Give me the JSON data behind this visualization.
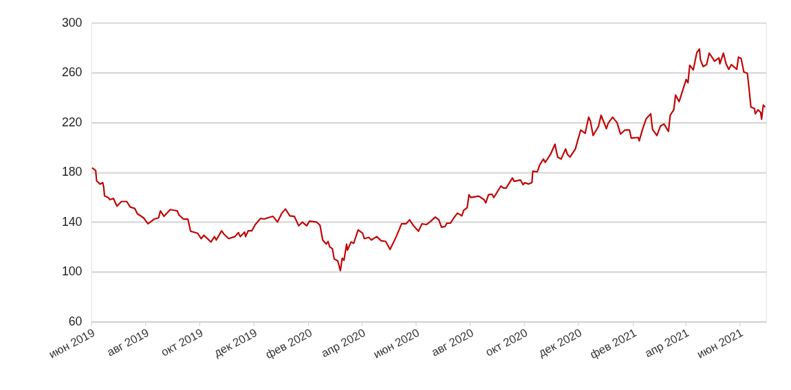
{
  "chart_data": {
    "type": "line",
    "x": [
      "2019-06-02",
      "2019-06-06",
      "2019-06-07",
      "2019-06-11",
      "2019-06-14",
      "2019-06-15",
      "2019-06-16",
      "2019-06-20",
      "2019-06-22",
      "2019-06-26",
      "2019-06-30",
      "2019-07-05",
      "2019-07-11",
      "2019-07-15",
      "2019-07-20",
      "2019-07-23",
      "2019-07-30",
      "2019-08-04",
      "2019-08-11",
      "2019-08-16",
      "2019-08-18",
      "2019-08-22",
      "2019-08-29",
      "2019-09-06",
      "2019-09-08",
      "2019-09-13",
      "2019-09-18",
      "2019-09-21",
      "2019-09-29",
      "2019-10-03",
      "2019-10-06",
      "2019-10-14",
      "2019-10-18",
      "2019-10-20",
      "2019-10-26",
      "2019-10-29",
      "2019-11-03",
      "2019-11-10",
      "2019-11-14",
      "2019-11-16",
      "2019-11-21",
      "2019-11-22",
      "2019-11-25",
      "2019-11-29",
      "2019-12-03",
      "2019-12-09",
      "2019-12-13",
      "2019-12-17",
      "2019-12-23",
      "2019-12-28",
      "2020-01-02",
      "2020-01-06",
      "2020-01-11",
      "2020-01-16",
      "2020-01-21",
      "2020-01-25",
      "2020-01-30",
      "2020-02-02",
      "2020-02-10",
      "2020-02-14",
      "2020-02-17",
      "2020-02-21",
      "2020-02-23",
      "2020-02-25",
      "2020-02-28",
      "2020-03-01",
      "2020-03-05",
      "2020-03-08",
      "2020-03-10",
      "2020-03-12",
      "2020-03-15",
      "2020-03-16",
      "2020-03-20",
      "2020-03-23",
      "2020-03-28",
      "2020-04-02",
      "2020-04-04",
      "2020-04-09",
      "2020-04-12",
      "2020-04-18",
      "2020-04-23",
      "2020-04-28",
      "2020-05-03",
      "2020-05-10",
      "2020-05-16",
      "2020-05-21",
      "2020-05-25",
      "2020-05-29",
      "2020-06-04",
      "2020-06-08",
      "2020-06-13",
      "2020-06-18",
      "2020-06-23",
      "2020-06-27",
      "2020-06-30",
      "2020-07-04",
      "2020-07-06",
      "2020-07-10",
      "2020-07-14",
      "2020-07-18",
      "2020-07-23",
      "2020-07-25",
      "2020-07-29",
      "2020-07-31",
      "2020-08-02",
      "2020-08-11",
      "2020-08-17",
      "2020-08-19",
      "2020-08-22",
      "2020-08-26",
      "2020-08-28",
      "2020-09-05",
      "2020-09-08",
      "2020-09-11",
      "2020-09-18",
      "2020-09-20",
      "2020-09-27",
      "2020-09-30",
      "2020-10-02",
      "2020-10-06",
      "2020-10-10",
      "2020-10-11",
      "2020-10-16",
      "2020-10-19",
      "2020-10-23",
      "2020-10-25",
      "2020-10-31",
      "2020-11-05",
      "2020-11-08",
      "2020-11-12",
      "2020-11-17",
      "2020-11-19",
      "2020-11-22",
      "2020-11-28",
      "2020-12-04",
      "2020-12-09",
      "2020-12-13",
      "2020-12-15",
      "2020-12-18",
      "2020-12-24",
      "2020-12-27",
      "2021-01-02",
      "2021-01-04",
      "2021-01-09",
      "2021-01-14",
      "2021-01-18",
      "2021-01-23",
      "2021-01-28",
      "2021-01-30",
      "2021-02-07",
      "2021-02-08",
      "2021-02-12",
      "2021-02-16",
      "2021-02-21",
      "2021-02-23",
      "2021-02-28",
      "2021-03-04",
      "2021-03-08",
      "2021-03-13",
      "2021-03-15",
      "2021-03-19",
      "2021-03-21",
      "2021-03-25",
      "2021-04-02",
      "2021-04-04",
      "2021-04-06",
      "2021-04-10",
      "2021-04-14",
      "2021-04-17",
      "2021-04-18",
      "2021-04-21",
      "2021-04-25",
      "2021-04-28",
      "2021-04-30",
      "2021-05-04",
      "2021-05-09",
      "2021-05-10",
      "2021-05-14",
      "2021-05-17",
      "2021-05-20",
      "2021-05-23",
      "2021-05-29",
      "2021-05-31",
      "2021-06-03",
      "2021-06-06",
      "2021-06-10",
      "2021-06-12",
      "2021-06-14",
      "2021-06-18",
      "2021-06-19",
      "2021-06-22",
      "2021-06-25",
      "2021-06-26",
      "2021-06-28",
      "2021-06-30"
    ],
    "series": [
      {
        "color": "#c00000",
        "values": [
          183.5,
          181.4,
          173,
          170.5,
          171.6,
          168,
          161,
          159.7,
          158,
          159,
          152.7,
          156.5,
          156.5,
          152,
          151,
          146.7,
          143.4,
          138.6,
          142.4,
          143.4,
          149,
          144.6,
          150,
          149,
          145.6,
          142.4,
          142.4,
          132.6,
          131,
          126.7,
          129.4,
          124,
          128.3,
          125.6,
          133,
          130,
          126.7,
          128.3,
          131.5,
          128.3,
          132,
          128.3,
          133,
          133,
          138,
          143,
          142.4,
          143.4,
          144.6,
          140,
          147.2,
          150.5,
          145,
          144.6,
          137,
          140,
          137,
          140.7,
          140,
          137.5,
          125.6,
          122.3,
          124.5,
          120,
          118.5,
          110.4,
          108.8,
          101,
          111,
          109.3,
          122.3,
          117.4,
          124,
          123,
          133.7,
          131,
          126.7,
          127.7,
          125.6,
          128.3,
          125,
          124.5,
          118,
          128.3,
          138.6,
          138.6,
          141.8,
          137.5,
          132.6,
          138.6,
          138,
          140.7,
          144,
          141.8,
          135.9,
          136.4,
          139.1,
          139.1,
          143.4,
          147.2,
          145,
          149.4,
          151.6,
          161.9,
          159.7,
          160.8,
          158,
          155.4,
          161.9,
          162.4,
          159.7,
          168.9,
          167.3,
          167.3,
          175.4,
          172.7,
          173.8,
          170,
          171.6,
          170.5,
          171.6,
          180.8,
          180.3,
          186.2,
          190.6,
          187.9,
          194.4,
          202.5,
          192.2,
          190.6,
          198.7,
          194.4,
          192.2,
          198.7,
          213.9,
          211.2,
          224.2,
          220.9,
          209.5,
          216.6,
          225.8,
          215,
          219.3,
          224.2,
          219.8,
          210.6,
          213.9,
          213.9,
          207.4,
          207.9,
          205.2,
          215,
          223.1,
          226.9,
          214.4,
          209.5,
          217.1,
          218.7,
          212.8,
          225.8,
          230.1,
          242,
          236.6,
          254.5,
          251.8,
          265.9,
          262.1,
          276.2,
          278.9,
          270.7,
          264.8,
          266.4,
          275.6,
          273.5,
          269.1,
          271.8,
          267,
          275.6,
          267,
          262.6,
          266.4,
          262.6,
          272.4,
          271.3,
          260.5,
          259.4,
          246.4,
          232.3,
          231.2,
          226.9,
          230.1,
          228,
          222.5,
          233.9,
          232.3
        ]
      }
    ],
    "xlim": [
      "2019-06-01",
      "2021-07-01"
    ],
    "xticks": [
      {
        "value": "2019-06-01",
        "label": "июн 2019"
      },
      {
        "value": "2019-08-01",
        "label": "авг 2019"
      },
      {
        "value": "2019-10-01",
        "label": "окт 2019"
      },
      {
        "value": "2019-12-01",
        "label": "дек 2019"
      },
      {
        "value": "2020-02-01",
        "label": "фев 2020"
      },
      {
        "value": "2020-04-01",
        "label": "апр 2020"
      },
      {
        "value": "2020-06-01",
        "label": "июн 2020"
      },
      {
        "value": "2020-08-01",
        "label": "авг 2020"
      },
      {
        "value": "2020-10-01",
        "label": "окт 2020"
      },
      {
        "value": "2020-12-01",
        "label": "дек 2020"
      },
      {
        "value": "2021-02-01",
        "label": "фев 2021"
      },
      {
        "value": "2021-04-01",
        "label": "апр 2021"
      },
      {
        "value": "2021-06-01",
        "label": "июн 2021"
      }
    ],
    "ylim": [
      60,
      300
    ],
    "yticks": [
      60,
      100,
      140,
      180,
      220,
      260,
      300
    ],
    "grid": "y",
    "legend": false,
    "marker": "none",
    "line_style": "solid"
  }
}
